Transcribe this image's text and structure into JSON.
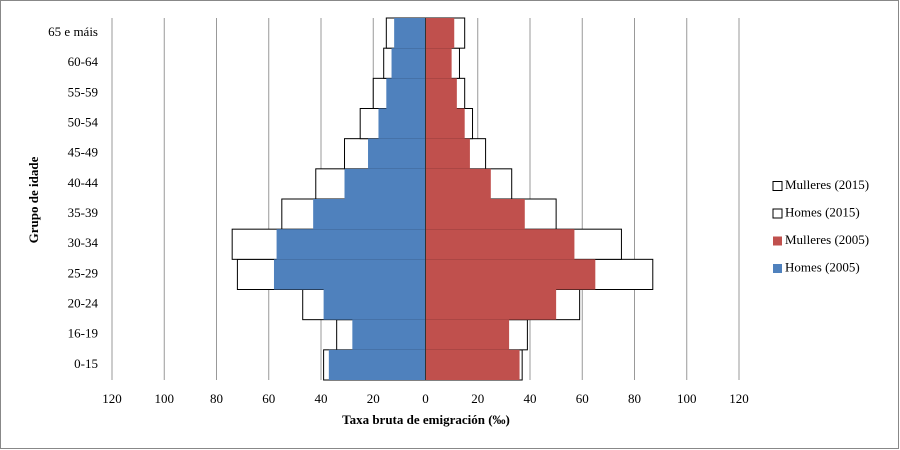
{
  "chart_data": {
    "type": "pyramid",
    "xlabel": "Taxa bruta de emigración (‰)",
    "ylabel": "Grupo de idade",
    "categories": [
      "0-15",
      "16-19",
      "20-24",
      "25-29",
      "30-34",
      "35-39",
      "40-44",
      "45-49",
      "50-54",
      "55-59",
      "60-64",
      "65 e máis"
    ],
    "series": [
      {
        "name": "Mulleres (2015)",
        "color": "#ffffff",
        "values": [
          37,
          39,
          59,
          87,
          75,
          50,
          33,
          23,
          18,
          15,
          13,
          15
        ]
      },
      {
        "name": "Homes (2015)",
        "color": "#ffffff",
        "values": [
          -39,
          -34,
          -47,
          -72,
          -74,
          -55,
          -42,
          -31,
          -25,
          -20,
          -16,
          -15
        ]
      },
      {
        "name": "Mulleres (2005)",
        "color": "#c0504d",
        "values": [
          36,
          32,
          50,
          65,
          57,
          38,
          25,
          17,
          15,
          12,
          10,
          11
        ]
      },
      {
        "name": "Homes (2005)",
        "color": "#4f81bd",
        "values": [
          -37,
          -28,
          -39,
          -58,
          -57,
          -43,
          -31,
          -22,
          -18,
          -15,
          -13,
          -12
        ]
      }
    ],
    "xlim": [
      -120,
      120
    ],
    "xticks": [
      {
        "value": -120,
        "label": "120"
      },
      {
        "value": -100,
        "label": "100"
      },
      {
        "value": -80,
        "label": "80"
      },
      {
        "value": -60,
        "label": "60"
      },
      {
        "value": -40,
        "label": "40"
      },
      {
        "value": -20,
        "label": "20"
      },
      0,
      20,
      40,
      60,
      80,
      100,
      120
    ],
    "grid": true
  }
}
